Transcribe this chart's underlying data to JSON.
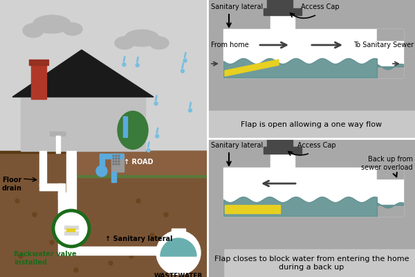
{
  "sky_color": "#d2d2d2",
  "ground_color": "#7a5535",
  "road_color": "#8a6040",
  "house_wall": "#c0c0c0",
  "house_roof": "#1a1a1a",
  "chimney_color": "#b03828",
  "chimney_dark": "#963020",
  "pipe_white": "#ffffff",
  "valve_green": "#1a6b1a",
  "flap_yellow": "#e8d020",
  "water_teal": "#5f9090",
  "rain_blue": "#7abfe0",
  "green_barrel": "#3a7a3a",
  "blue_water": "#5aaadd",
  "gray_filter": "#999999",
  "cloud_color": "#b8b8b8",
  "panel_bg": "#a8a8a8",
  "caption_bg": "#c8c8c8",
  "cap_dark": "#484848",
  "arrow_color": "#404040",
  "road_label": "↑ ROAD",
  "floor_drain_label": "Floor\ndrain",
  "backwater_label": "Backwater valve\ninstalled",
  "sanitary_lat_label": "↑ Sanitary lateral",
  "wastewater_label": "WASTEWATER\nSEWER",
  "access_cap_label": "Access Cap",
  "from_home_label": "From home",
  "to_sewer_label": "To Sanitary Sewer",
  "back_up_label": "Back up from\nsewer overload",
  "label_open": "Flap is open allowing a one way flow",
  "label_closed": "Flap closes to block water from entering the home\nduring a back up",
  "sanitary_lateral_label": "Sanitary lateral",
  "dot_color": "#6a4520",
  "divider_white": "#ffffff"
}
